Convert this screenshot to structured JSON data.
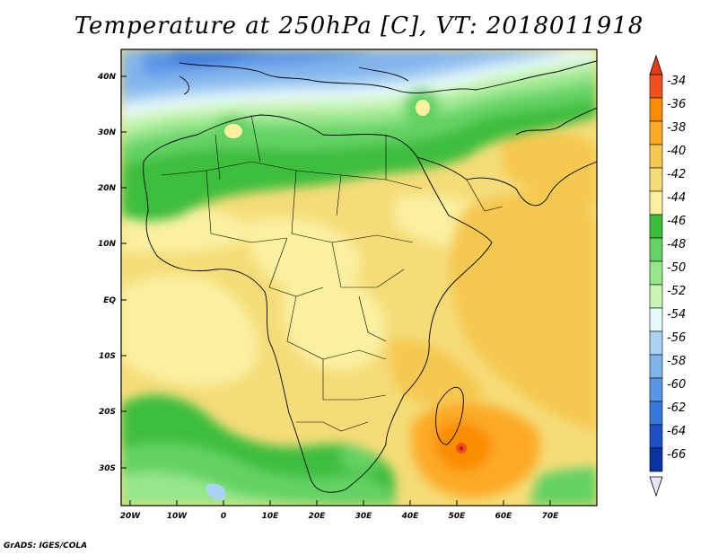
{
  "title": "Temperature at 250hPa [C], VT: 2018011918",
  "credit": "GrADS: IGES/COLA",
  "lat_labels": [
    "40N",
    "30N",
    "20N",
    "10N",
    "EQ",
    "10S",
    "20S",
    "30S"
  ],
  "lon_labels": [
    "20W",
    "10W",
    "0",
    "10E",
    "20E",
    "30E",
    "40E",
    "50E",
    "60E",
    "70E"
  ],
  "colorbar": {
    "labels": [
      "-34",
      "-36",
      "-38",
      "-40",
      "-42",
      "-44",
      "-46",
      "-48",
      "-50",
      "-52",
      "-54",
      "-56",
      "-58",
      "-60",
      "-62",
      "-64",
      "-66"
    ],
    "colors": [
      "#f0501e",
      "#fa8c00",
      "#fcaa28",
      "#f5c850",
      "#f5dc78",
      "#faf0a0",
      "#3cbe3c",
      "#64d264",
      "#96e68c",
      "#c8f5b4",
      "#e6fafa",
      "#aad2f5",
      "#82b4eb",
      "#5a96e6",
      "#3778dc",
      "#1e50c8",
      "#0a32a0",
      "#000082"
    ],
    "top_color": "#e63c14",
    "bottom_color": "#e6e6fa"
  }
}
